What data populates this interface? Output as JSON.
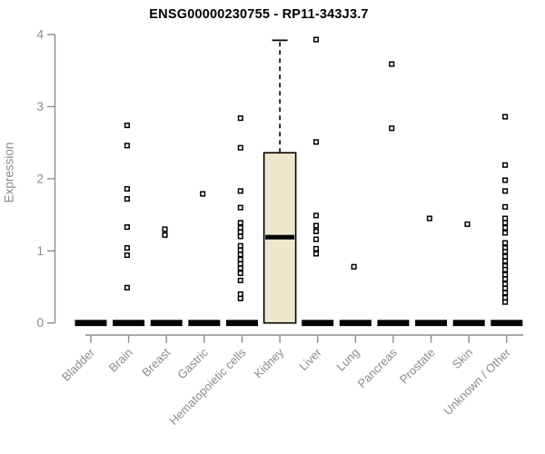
{
  "chart_data": {
    "type": "boxplot",
    "title": "ENSG00000230755 - RP11-343J3.7",
    "ylabel": "Expression",
    "ylim": [
      0,
      4
    ],
    "yticks": [
      0,
      1,
      2,
      3,
      4
    ],
    "grid": false,
    "legend": false,
    "categories": [
      "Bladder",
      "Brain",
      "Breast",
      "Gastric",
      "Hematopoietic cells",
      "Kidney",
      "Liver",
      "Lung",
      "Pancreas",
      "Prostate",
      "Skin",
      "Unknown / Other"
    ],
    "series": [
      {
        "category": "Bladder",
        "box": {
          "q1": 0,
          "median": 0,
          "q3": 0,
          "whisker_low": 0,
          "whisker_high": 0
        },
        "outliers": []
      },
      {
        "category": "Brain",
        "box": {
          "q1": 0,
          "median": 0,
          "q3": 0,
          "whisker_low": 0,
          "whisker_high": 0
        },
        "outliers": [
          2.74,
          2.46,
          1.86,
          1.72,
          1.33,
          1.04,
          0.94,
          0.49
        ]
      },
      {
        "category": "Breast",
        "box": {
          "q1": 0,
          "median": 0,
          "q3": 0,
          "whisker_low": 0,
          "whisker_high": 0
        },
        "outliers": [
          1.3,
          1.22
        ]
      },
      {
        "category": "Gastric",
        "box": {
          "q1": 0,
          "median": 0,
          "q3": 0,
          "whisker_low": 0,
          "whisker_high": 0
        },
        "outliers": [
          1.79
        ]
      },
      {
        "category": "Hematopoietic cells",
        "box": {
          "q1": 0,
          "median": 0,
          "q3": 0,
          "whisker_low": 0,
          "whisker_high": 0
        },
        "outliers": [
          2.84,
          2.43,
          1.83,
          1.6,
          1.39,
          1.32,
          1.26,
          1.2,
          1.07,
          1.01,
          0.95,
          0.88,
          0.82,
          0.76,
          0.69,
          0.59,
          0.4,
          0.34
        ]
      },
      {
        "category": "Kidney",
        "box": {
          "q1": 0,
          "median": 1.19,
          "q3": 2.36,
          "whisker_low": 0,
          "whisker_high": 3.92
        },
        "outliers": []
      },
      {
        "category": "Liver",
        "box": {
          "q1": 0,
          "median": 0,
          "q3": 0,
          "whisker_low": 0,
          "whisker_high": 0
        },
        "outliers": [
          3.93,
          2.51,
          1.49,
          1.35,
          1.27,
          1.16,
          1.03,
          0.96
        ]
      },
      {
        "category": "Lung",
        "box": {
          "q1": 0,
          "median": 0,
          "q3": 0,
          "whisker_low": 0,
          "whisker_high": 0
        },
        "outliers": [
          0.78
        ]
      },
      {
        "category": "Pancreas",
        "box": {
          "q1": 0,
          "median": 0,
          "q3": 0,
          "whisker_low": 0,
          "whisker_high": 0
        },
        "outliers": [
          3.59,
          2.7
        ]
      },
      {
        "category": "Prostate",
        "box": {
          "q1": 0,
          "median": 0,
          "q3": 0,
          "whisker_low": 0,
          "whisker_high": 0
        },
        "outliers": [
          1.45
        ]
      },
      {
        "category": "Skin",
        "box": {
          "q1": 0,
          "median": 0,
          "q3": 0,
          "whisker_low": 0,
          "whisker_high": 0
        },
        "outliers": [
          1.37
        ]
      },
      {
        "category": "Unknown / Other",
        "box": {
          "q1": 0,
          "median": 0,
          "q3": 0,
          "whisker_low": 0,
          "whisker_high": 0
        },
        "outliers": [
          2.86,
          2.19,
          1.98,
          1.83,
          1.61,
          1.45,
          1.39,
          1.32,
          1.25,
          1.11,
          1.04,
          0.99,
          0.92,
          0.86,
          0.79,
          0.74,
          0.67,
          0.61,
          0.54,
          0.48,
          0.42,
          0.35,
          0.29
        ]
      }
    ],
    "colors": {
      "box_fill": "#EDE8CD",
      "box_border": "#000000",
      "median": "#000000",
      "collapsed_bar": "#000000",
      "marker_stroke": "#000000",
      "marker_fill": "#FFFFFF",
      "axis": "#8B8B8B",
      "tick_label": "#8B8B8B",
      "title": "#000000",
      "background": "#FFFFFF"
    }
  }
}
